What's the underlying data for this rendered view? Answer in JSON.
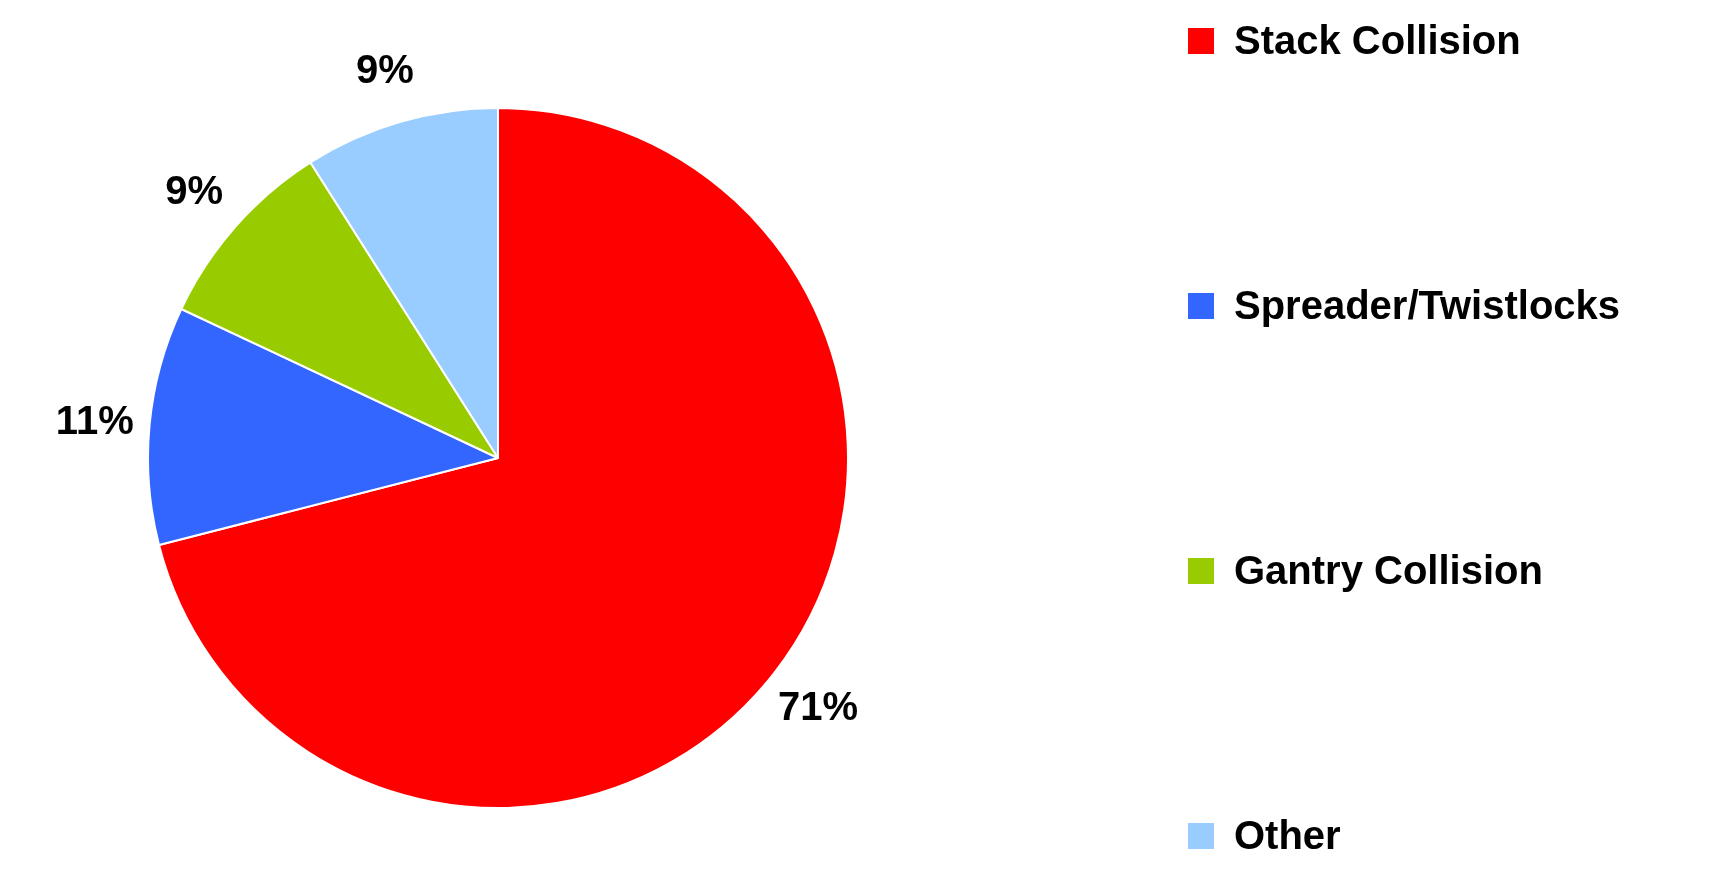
{
  "chart_data": {
    "type": "pie",
    "categories": [
      "Stack Collision",
      "Spreader/Twistlocks",
      "Gantry Collision",
      "Other"
    ],
    "values": [
      71,
      11,
      9,
      9
    ],
    "colors": [
      "#ff0000",
      "#3366ff",
      "#99cc00",
      "#99ccff"
    ],
    "value_labels": [
      "71%",
      "11%",
      "9%",
      "9%"
    ],
    "legend": "right"
  }
}
